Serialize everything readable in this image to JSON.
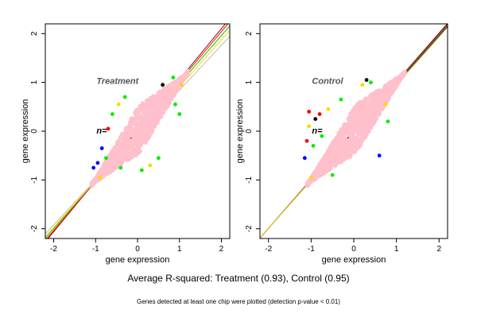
{
  "chart_data": [
    {
      "type": "scatter",
      "annotation": "Treatment",
      "count_label": "n=",
      "xlabel": "gene expression",
      "ylabel": "gene expression",
      "xlim": [
        -2.2,
        2.2
      ],
      "ylim": [
        -2.2,
        2.2
      ],
      "x_ticks": [
        -2,
        -1,
        0,
        1,
        2
      ],
      "y_ticks": [
        -2,
        -1,
        0,
        1,
        2
      ],
      "grid": false,
      "cloud": {
        "x_min": -1.1,
        "x_max": 1.2,
        "ridge_width": 0.5,
        "color": "#ffc0cb"
      },
      "outliers": [
        {
          "x": -1.05,
          "y": -0.75,
          "color": "#0000ff"
        },
        {
          "x": -0.95,
          "y": -0.65,
          "color": "#0000ff"
        },
        {
          "x": -0.85,
          "y": -0.35,
          "color": "#0000ff"
        },
        {
          "x": -0.75,
          "y": -0.55,
          "color": "#00ee00"
        },
        {
          "x": -0.6,
          "y": 0.35,
          "color": "#00ee00"
        },
        {
          "x": -0.45,
          "y": 0.55,
          "color": "#ffd700"
        },
        {
          "x": -0.7,
          "y": 0.05,
          "color": "#ff0000"
        },
        {
          "x": -0.3,
          "y": 0.7,
          "color": "#00ee00"
        },
        {
          "x": 0.1,
          "y": -0.8,
          "color": "#00ee00"
        },
        {
          "x": 0.3,
          "y": -0.7,
          "color": "#ffd700"
        },
        {
          "x": 0.5,
          "y": -0.55,
          "color": "#00ee00"
        },
        {
          "x": 0.9,
          "y": 0.55,
          "color": "#00ee00"
        },
        {
          "x": 1.0,
          "y": 0.35,
          "color": "#00ee00"
        },
        {
          "x": 1.05,
          "y": 0.95,
          "color": "#ffd700"
        },
        {
          "x": 0.85,
          "y": 1.1,
          "color": "#00ee00"
        },
        {
          "x": -0.9,
          "y": -0.95,
          "color": "#ffd700"
        },
        {
          "x": -0.4,
          "y": -0.75,
          "color": "#00ee00"
        },
        {
          "x": 0.6,
          "y": 0.95,
          "color": "#000000"
        }
      ],
      "lines": [
        {
          "color": "#8b0000",
          "slope": 1.04,
          "intercept": 0.02
        },
        {
          "color": "#ff0000",
          "slope": 1.02,
          "intercept": 0.0
        },
        {
          "color": "#00cc00",
          "slope": 0.99,
          "intercept": -0.02
        },
        {
          "color": "#ffd700",
          "slope": 0.96,
          "intercept": -0.05
        },
        {
          "color": "#bbbbbb",
          "slope": 0.92,
          "intercept": -0.08
        }
      ]
    },
    {
      "type": "scatter",
      "annotation": "Control",
      "count_label": "n=",
      "xlabel": "gene expression",
      "ylabel": "gene expression",
      "xlim": [
        -2.2,
        2.2
      ],
      "ylim": [
        -2.2,
        2.2
      ],
      "x_ticks": [
        -2,
        -1,
        0,
        1,
        2
      ],
      "y_ticks": [
        -2,
        -1,
        0,
        1,
        2
      ],
      "grid": false,
      "cloud": {
        "x_min": -1.1,
        "x_max": 1.2,
        "ridge_width": 0.5,
        "color": "#ffc0cb"
      },
      "outliers": [
        {
          "x": -1.15,
          "y": -0.55,
          "color": "#0000ff"
        },
        {
          "x": -1.1,
          "y": -0.2,
          "color": "#ff0000"
        },
        {
          "x": -1.05,
          "y": 0.1,
          "color": "#ffd700"
        },
        {
          "x": -0.95,
          "y": -0.3,
          "color": "#00ee00"
        },
        {
          "x": -0.9,
          "y": 0.25,
          "color": "#000000"
        },
        {
          "x": -1.05,
          "y": 0.4,
          "color": "#ff0000"
        },
        {
          "x": -0.8,
          "y": 0.35,
          "color": "#ff0000"
        },
        {
          "x": -0.6,
          "y": 0.45,
          "color": "#ffd700"
        },
        {
          "x": -0.3,
          "y": 0.65,
          "color": "#00ee00"
        },
        {
          "x": 0.2,
          "y": 0.95,
          "color": "#ffd700"
        },
        {
          "x": 0.4,
          "y": 1.0,
          "color": "#00ee00"
        },
        {
          "x": 0.6,
          "y": -0.5,
          "color": "#0000ff"
        },
        {
          "x": 0.75,
          "y": 0.55,
          "color": "#ffd700"
        },
        {
          "x": 0.8,
          "y": 0.2,
          "color": "#00ee00"
        },
        {
          "x": -0.5,
          "y": -0.9,
          "color": "#00ee00"
        },
        {
          "x": -1.0,
          "y": -0.95,
          "color": "#ffd700"
        },
        {
          "x": 0.3,
          "y": 1.05,
          "color": "#000000"
        },
        {
          "x": -0.75,
          "y": -0.1,
          "color": "#00ee00"
        }
      ],
      "lines": [
        {
          "color": "#8b0000",
          "slope": 1.0,
          "intercept": 0.01
        },
        {
          "color": "#ff0000",
          "slope": 0.995,
          "intercept": 0.0
        },
        {
          "color": "#00cc00",
          "slope": 0.99,
          "intercept": -0.01
        },
        {
          "color": "#0000ff",
          "slope": 0.985,
          "intercept": -0.02
        },
        {
          "color": "#ffd700",
          "slope": 0.98,
          "intercept": -0.03
        }
      ]
    }
  ],
  "footer": {
    "average": "Average R-squared: Treatment (0.93), Control (0.95)",
    "note": "Genes detected at least one chip were plotted (detection p-value < 0.01)"
  }
}
